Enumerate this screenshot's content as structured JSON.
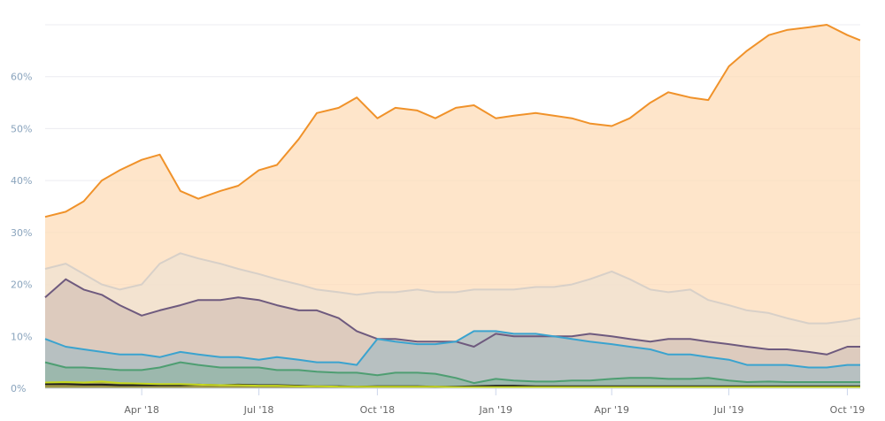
{
  "chart_data": {
    "type": "area",
    "title": "",
    "xlabel": "",
    "ylabel": "",
    "ylim": [
      0,
      70
    ],
    "grid": true,
    "legend": "none",
    "y_ticks": [
      "0%",
      "10%",
      "20%",
      "30%",
      "40%",
      "50%",
      "60%"
    ],
    "x_ticks": [
      {
        "label": "Apr '18",
        "date": "2018-04-01"
      },
      {
        "label": "Jul '18",
        "date": "2018-07-01"
      },
      {
        "label": "Oct '18",
        "date": "2018-10-01"
      },
      {
        "label": "Jan '19",
        "date": "2019-01-01"
      },
      {
        "label": "Apr '19",
        "date": "2019-04-01"
      },
      {
        "label": "Jul '19",
        "date": "2019-07-01"
      },
      {
        "label": "Oct '19",
        "date": "2019-10-01"
      }
    ],
    "xlim": [
      "2018-01-16",
      "2019-10-11"
    ],
    "x": [
      "2018-01-16",
      "2018-02-01",
      "2018-02-15",
      "2018-03-01",
      "2018-03-15",
      "2018-04-01",
      "2018-04-15",
      "2018-05-01",
      "2018-05-15",
      "2018-06-01",
      "2018-06-15",
      "2018-07-01",
      "2018-07-15",
      "2018-08-01",
      "2018-08-15",
      "2018-09-01",
      "2018-09-15",
      "2018-10-01",
      "2018-10-15",
      "2018-11-01",
      "2018-11-15",
      "2018-12-01",
      "2018-12-15",
      "2019-01-01",
      "2019-01-15",
      "2019-02-01",
      "2019-02-15",
      "2019-03-01",
      "2019-03-15",
      "2019-04-01",
      "2019-04-15",
      "2019-05-01",
      "2019-05-15",
      "2019-06-01",
      "2019-06-15",
      "2019-07-01",
      "2019-07-15",
      "2019-08-01",
      "2019-08-15",
      "2019-09-01",
      "2019-09-15",
      "2019-10-01",
      "2019-10-11"
    ],
    "series": [
      {
        "color": "#f0922a",
        "fill": "#fddcb8",
        "values": [
          33,
          34,
          36,
          40,
          42,
          44,
          45,
          38,
          36.5,
          38,
          39,
          42,
          43,
          48,
          53,
          54,
          56,
          52,
          54,
          53.5,
          52,
          54,
          54.5,
          52,
          52.5,
          53,
          52.5,
          52,
          51,
          50.5,
          52,
          55,
          57,
          56,
          55.5,
          62,
          65,
          68,
          69,
          69.5,
          70,
          68,
          67
        ]
      },
      {
        "color": "#d8d0c8",
        "fill": "#efe2d2",
        "values": [
          23,
          24,
          22,
          20,
          19,
          20,
          24,
          26,
          25,
          24,
          23,
          22,
          21,
          20,
          19,
          18.5,
          18,
          18.5,
          18.5,
          19,
          18.5,
          18.5,
          19,
          19,
          19,
          19.5,
          19.5,
          20,
          21,
          22.5,
          21,
          19,
          18.5,
          19,
          17,
          16,
          15,
          14.5,
          13.5,
          12.5,
          12.5,
          13,
          13.5
        ]
      },
      {
        "color": "#6e5a7e",
        "fill": "#d6c3b8",
        "values": [
          17.5,
          21,
          19,
          18,
          16,
          14,
          15,
          16,
          17,
          17,
          17.5,
          17,
          16,
          15,
          15,
          13.5,
          11,
          9.5,
          9.5,
          9,
          9,
          9,
          8,
          10.5,
          10,
          10,
          10,
          10,
          10.5,
          10,
          9.5,
          9,
          9.5,
          9.5,
          9,
          8.5,
          8,
          7.5,
          7.5,
          7,
          6.5,
          8,
          8
        ]
      },
      {
        "color": "#3aa3cf",
        "fill": "#a9bcc2",
        "values": [
          9.5,
          8,
          7.5,
          7,
          6.5,
          6.5,
          6,
          7,
          6.5,
          6,
          6,
          5.5,
          6,
          5.5,
          5,
          5,
          4.5,
          9.5,
          9,
          8.5,
          8.5,
          9,
          11,
          11,
          10.5,
          10.5,
          10,
          9.5,
          9,
          8.5,
          8,
          7.5,
          6.5,
          6.5,
          6,
          5.5,
          4.5,
          4.5,
          4.5,
          4,
          4,
          4.5,
          4.5
        ]
      },
      {
        "color": "#4e9e72",
        "fill": "#93b5a6",
        "values": [
          5,
          4,
          4,
          3.8,
          3.5,
          3.5,
          4,
          5,
          4.5,
          4,
          4,
          4,
          3.5,
          3.5,
          3.2,
          3,
          3,
          2.5,
          3,
          3,
          2.8,
          2,
          1,
          1.8,
          1.5,
          1.3,
          1.3,
          1.5,
          1.5,
          1.8,
          2,
          2,
          1.8,
          1.8,
          2,
          1.5,
          1.2,
          1.3,
          1.2,
          1.2,
          1.2,
          1.2,
          1.2
        ]
      },
      {
        "color": "#1e1e1e",
        "fill": "#7a7150",
        "values": [
          0.8,
          0.8,
          0.7,
          0.7,
          0.6,
          0.6,
          0.6,
          0.6,
          0.7,
          0.6,
          0.7,
          0.6,
          0.6,
          0.5,
          0.4,
          0.4,
          0.3,
          0.4,
          0.4,
          0.4,
          0.3,
          0.3,
          0.4,
          0.5,
          0.5,
          0.4,
          0.4,
          0.4,
          0.4,
          0.4,
          0.4,
          0.4,
          0.4,
          0.4,
          0.4,
          0.4,
          0.4,
          0.4,
          0.4,
          0.4,
          0.4,
          0.4,
          0.4
        ]
      },
      {
        "color": "#c6d81e",
        "fill": "#a69a3a",
        "values": [
          1.1,
          1.2,
          1.1,
          1.3,
          1.0,
          0.9,
          0.8,
          0.8,
          0.7,
          0.6,
          0.6,
          0.5,
          0.5,
          0.4,
          0.4,
          0.3,
          0.3,
          0.3,
          0.3,
          0.3,
          0.3,
          0.2,
          0.2,
          0.2,
          0.2,
          0.2,
          0.2,
          0.2,
          0.2,
          0.2,
          0.2,
          0.2,
          0.2,
          0.2,
          0.2,
          0.2,
          0.2,
          0.2,
          0.2,
          0.2,
          0.2,
          0.2,
          0.2
        ]
      }
    ]
  }
}
